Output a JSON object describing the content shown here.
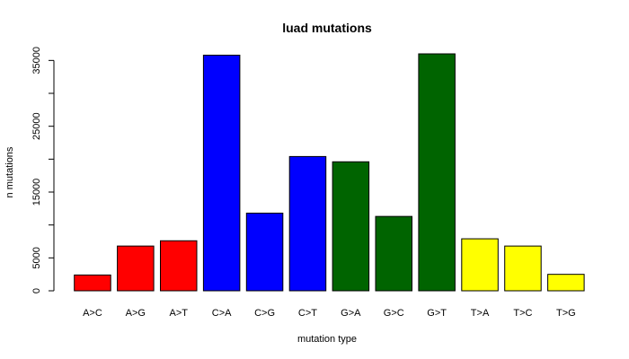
{
  "chart_data": {
    "type": "bar",
    "title": "luad mutations",
    "xlabel": "mutation type",
    "ylabel": "n mutations",
    "ylim": [
      0,
      36000
    ],
    "yticks": [
      0,
      5000,
      15000,
      25000,
      35000
    ],
    "grid": false,
    "categories": [
      "A>C",
      "A>G",
      "A>T",
      "C>A",
      "C>G",
      "C>T",
      "G>A",
      "G>C",
      "G>T",
      "T>A",
      "T>C",
      "T>G"
    ],
    "values": [
      2400,
      6800,
      7600,
      35800,
      11800,
      20400,
      19600,
      11300,
      36000,
      7900,
      6800,
      2500
    ],
    "colors": [
      "#ff0000",
      "#ff0000",
      "#ff0000",
      "#0000ff",
      "#0000ff",
      "#0000ff",
      "#006400",
      "#006400",
      "#006400",
      "#ffff00",
      "#ffff00",
      "#ffff00"
    ]
  }
}
